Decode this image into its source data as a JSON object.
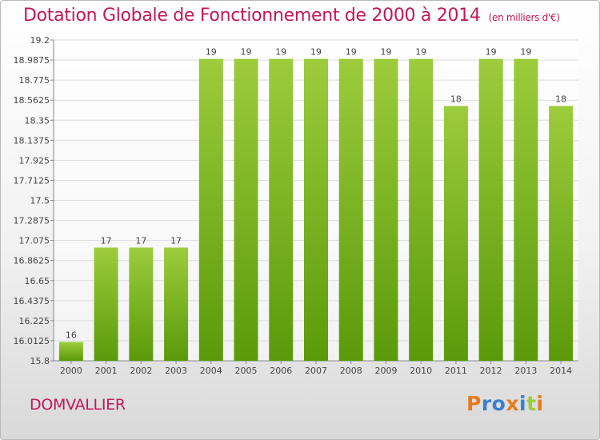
{
  "header": {
    "title": "Dotation Globale de Fonctionnement de 2000 à 2014",
    "unit": "(en milliers d'€)"
  },
  "footer": {
    "place": "DOMVALLIER",
    "logo": "Proxiti"
  },
  "colors": {
    "title": "#c2185b",
    "bar_top": "#9ccc3c",
    "bar_bottom": "#5a9a0a",
    "grid": "#dddddd",
    "logo_letters": [
      "#e87a1a",
      "#3a7fd0",
      "#3a7fd0",
      "#e87a1a",
      "#3a7fd0",
      "#9ccc3c",
      "#e87a1a"
    ]
  },
  "chart_data": {
    "type": "bar",
    "title": "Dotation Globale de Fonctionnement de 2000 à 2014",
    "subtitle": "(en milliers d'€)",
    "categories": [
      "2000",
      "2001",
      "2002",
      "2003",
      "2004",
      "2005",
      "2006",
      "2007",
      "2008",
      "2009",
      "2010",
      "2011",
      "2012",
      "2013",
      "2014"
    ],
    "values": [
      16,
      17,
      17,
      17,
      19,
      19,
      19,
      19,
      19,
      19,
      19,
      18,
      19,
      19,
      18
    ],
    "plotted_values": [
      16.0,
      17.0,
      17.0,
      17.0,
      19.0,
      19.0,
      19.0,
      19.0,
      19.0,
      19.0,
      19.0,
      18.5,
      19.0,
      19.0,
      18.5
    ],
    "data_labels": [
      "16",
      "17",
      "17",
      "17",
      "19",
      "19",
      "19",
      "19",
      "19",
      "19",
      "19",
      "18",
      "19",
      "19",
      "18"
    ],
    "ylim": [
      15.8,
      19.2
    ],
    "yticks": [
      "15.8",
      "16.0125",
      "16.225",
      "16.4375",
      "16.65",
      "16.8625",
      "17.075",
      "17.2875",
      "17.5",
      "17.7125",
      "17.925",
      "18.1375",
      "18.35",
      "18.5625",
      "18.775",
      "18.9875",
      "19.2"
    ],
    "xlabel": "",
    "ylabel": "",
    "grid": true
  }
}
